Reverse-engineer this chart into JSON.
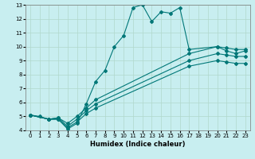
{
  "xlabel": "Humidex (Indice chaleur)",
  "bg_color": "#c8eef0",
  "grid_color": "#b0d8cc",
  "line_color": "#007777",
  "xlim": [
    -0.5,
    23.5
  ],
  "ylim": [
    4,
    13
  ],
  "xticks": [
    0,
    1,
    2,
    3,
    4,
    5,
    6,
    7,
    8,
    9,
    10,
    11,
    12,
    13,
    14,
    15,
    16,
    17,
    18,
    19,
    20,
    21,
    22,
    23
  ],
  "yticks": [
    4,
    5,
    6,
    7,
    8,
    9,
    10,
    11,
    12,
    13
  ],
  "lines": [
    {
      "x": [
        0,
        1,
        2,
        3,
        4,
        5,
        6,
        7,
        8,
        9,
        10,
        11,
        12,
        13,
        14,
        15,
        16,
        17,
        20,
        21,
        22,
        23
      ],
      "y": [
        5.1,
        5.0,
        4.8,
        4.8,
        4.1,
        4.5,
        5.9,
        7.5,
        8.3,
        10.0,
        10.8,
        12.8,
        13.0,
        11.8,
        12.5,
        12.4,
        12.8,
        9.8,
        10.0,
        9.7,
        9.5,
        9.7
      ]
    },
    {
      "x": [
        0,
        2,
        3,
        4,
        5,
        6,
        7,
        17,
        20,
        21,
        22,
        23
      ],
      "y": [
        5.1,
        4.8,
        4.9,
        4.5,
        5.0,
        5.6,
        6.2,
        9.5,
        10.0,
        9.9,
        9.8,
        9.8
      ]
    },
    {
      "x": [
        0,
        2,
        3,
        4,
        5,
        6,
        7,
        17,
        20,
        21,
        22,
        23
      ],
      "y": [
        5.1,
        4.8,
        4.9,
        4.3,
        4.8,
        5.4,
        5.9,
        9.0,
        9.5,
        9.4,
        9.3,
        9.3
      ]
    },
    {
      "x": [
        0,
        2,
        3,
        4,
        5,
        6,
        7,
        17,
        20,
        21,
        22,
        23
      ],
      "y": [
        5.1,
        4.8,
        4.8,
        4.2,
        4.6,
        5.2,
        5.6,
        8.6,
        9.0,
        8.9,
        8.8,
        8.8
      ]
    }
  ],
  "markersize": 2.0,
  "linewidth": 0.8,
  "label_fontsize": 6,
  "tick_fontsize": 5
}
